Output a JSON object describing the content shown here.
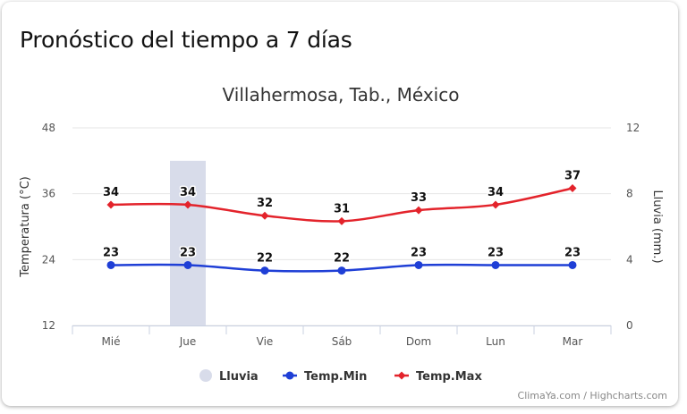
{
  "widget": {
    "title": "Pronóstico del tiempo a 7 días"
  },
  "credits": "ClimaYa.com / Highcharts.com",
  "colors": {
    "rain": "#d8dcea",
    "temp_min": "#1f3fd6",
    "temp_max": "#e3232b",
    "grid": "#e6e6e6"
  },
  "chart_data": {
    "type": "line",
    "title": "Villahermosa, Tab., México",
    "categories": [
      "Mié",
      "Jue",
      "Vie",
      "Sáb",
      "Dom",
      "Lun",
      "Mar"
    ],
    "y_left": {
      "label": "Temperatura (°C)",
      "range": [
        12,
        48
      ],
      "ticks": [
        "12",
        "24",
        "36",
        "48"
      ]
    },
    "y_right": {
      "label": "Lluvia (mm.)",
      "range": [
        0,
        12
      ],
      "ticks": [
        "0",
        "4",
        "8",
        "12"
      ]
    },
    "grid": true,
    "legend_position": "bottom-center",
    "series": [
      {
        "name": "Lluvia",
        "type": "bar",
        "axis": "right",
        "values": [
          0,
          10,
          0,
          0,
          0,
          0,
          0
        ]
      },
      {
        "name": "Temp.Min",
        "type": "line",
        "axis": "left",
        "marker": "circle",
        "values": [
          23,
          23,
          22,
          22,
          23,
          23,
          23
        ]
      },
      {
        "name": "Temp.Max",
        "type": "line",
        "axis": "left",
        "marker": "diamond",
        "values": [
          34,
          34,
          32,
          31,
          33,
          34,
          37
        ]
      }
    ]
  }
}
